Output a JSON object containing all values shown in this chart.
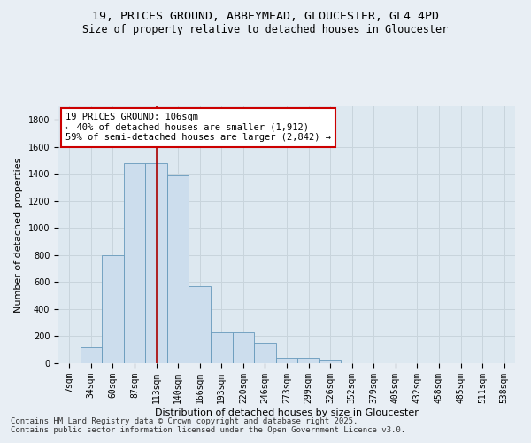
{
  "title_line1": "19, PRICES GROUND, ABBEYMEAD, GLOUCESTER, GL4 4PD",
  "title_line2": "Size of property relative to detached houses in Gloucester",
  "xlabel": "Distribution of detached houses by size in Gloucester",
  "ylabel": "Number of detached properties",
  "bar_color": "#ccdded",
  "bar_edge_color": "#6699bb",
  "bg_color": "#dde8f0",
  "grid_color": "#c8d4dc",
  "fig_bg_color": "#e8eef4",
  "categories": [
    "7sqm",
    "34sqm",
    "60sqm",
    "87sqm",
    "113sqm",
    "140sqm",
    "166sqm",
    "193sqm",
    "220sqm",
    "246sqm",
    "273sqm",
    "299sqm",
    "326sqm",
    "352sqm",
    "379sqm",
    "405sqm",
    "432sqm",
    "458sqm",
    "485sqm",
    "511sqm",
    "538sqm"
  ],
  "values": [
    0,
    120,
    800,
    1480,
    1480,
    1390,
    570,
    230,
    230,
    150,
    40,
    40,
    25,
    0,
    0,
    0,
    0,
    0,
    0,
    0,
    0
  ],
  "ylim": [
    0,
    1900
  ],
  "yticks": [
    0,
    200,
    400,
    600,
    800,
    1000,
    1200,
    1400,
    1600,
    1800
  ],
  "vline_x_idx": 4,
  "annotation_text": "19 PRICES GROUND: 106sqm\n← 40% of detached houses are smaller (1,912)\n59% of semi-detached houses are larger (2,842) →",
  "annotation_box_color": "#ffffff",
  "annotation_box_edge": "#cc0000",
  "vline_color": "#aa0000",
  "footnote": "Contains HM Land Registry data © Crown copyright and database right 2025.\nContains public sector information licensed under the Open Government Licence v3.0.",
  "title_fontsize": 9.5,
  "subtitle_fontsize": 8.5,
  "axis_label_fontsize": 8,
  "tick_fontsize": 7,
  "annotation_fontsize": 7.5,
  "footnote_fontsize": 6.5
}
